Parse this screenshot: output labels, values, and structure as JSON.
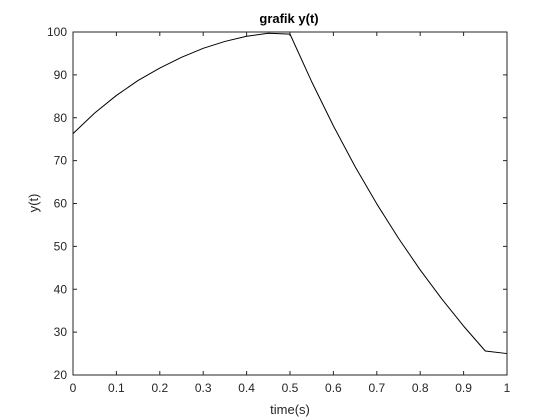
{
  "chart_data": {
    "type": "line",
    "title": "grafik y(t)",
    "xlabel": "time(s)",
    "ylabel": "y(t)",
    "xlim": [
      0,
      1
    ],
    "ylim": [
      20,
      100
    ],
    "xticks": [
      "0",
      "0.1",
      "0.2",
      "0.3",
      "0.4",
      "0.5",
      "0.6",
      "0.7",
      "0.8",
      "0.9",
      "1"
    ],
    "yticks": [
      "20",
      "30",
      "40",
      "50",
      "60",
      "70",
      "80",
      "90",
      "100"
    ],
    "grid": false,
    "line_color": "#000000",
    "series": [
      {
        "x": [
          0,
          0.05,
          0.1,
          0.15,
          0.2,
          0.25,
          0.3,
          0.35,
          0.4,
          0.45,
          0.5,
          0.55,
          0.6,
          0.65,
          0.7,
          0.75,
          0.8,
          0.85,
          0.9,
          0.95,
          1.0
        ],
        "values": [
          76.3,
          81.1,
          85.2,
          88.7,
          91.6,
          94.1,
          96.2,
          97.8,
          99.0,
          99.7,
          99.5,
          88.4,
          78.1,
          68.6,
          59.9,
          51.9,
          44.5,
          37.7,
          31.4,
          25.6,
          25.0
        ]
      }
    ]
  }
}
